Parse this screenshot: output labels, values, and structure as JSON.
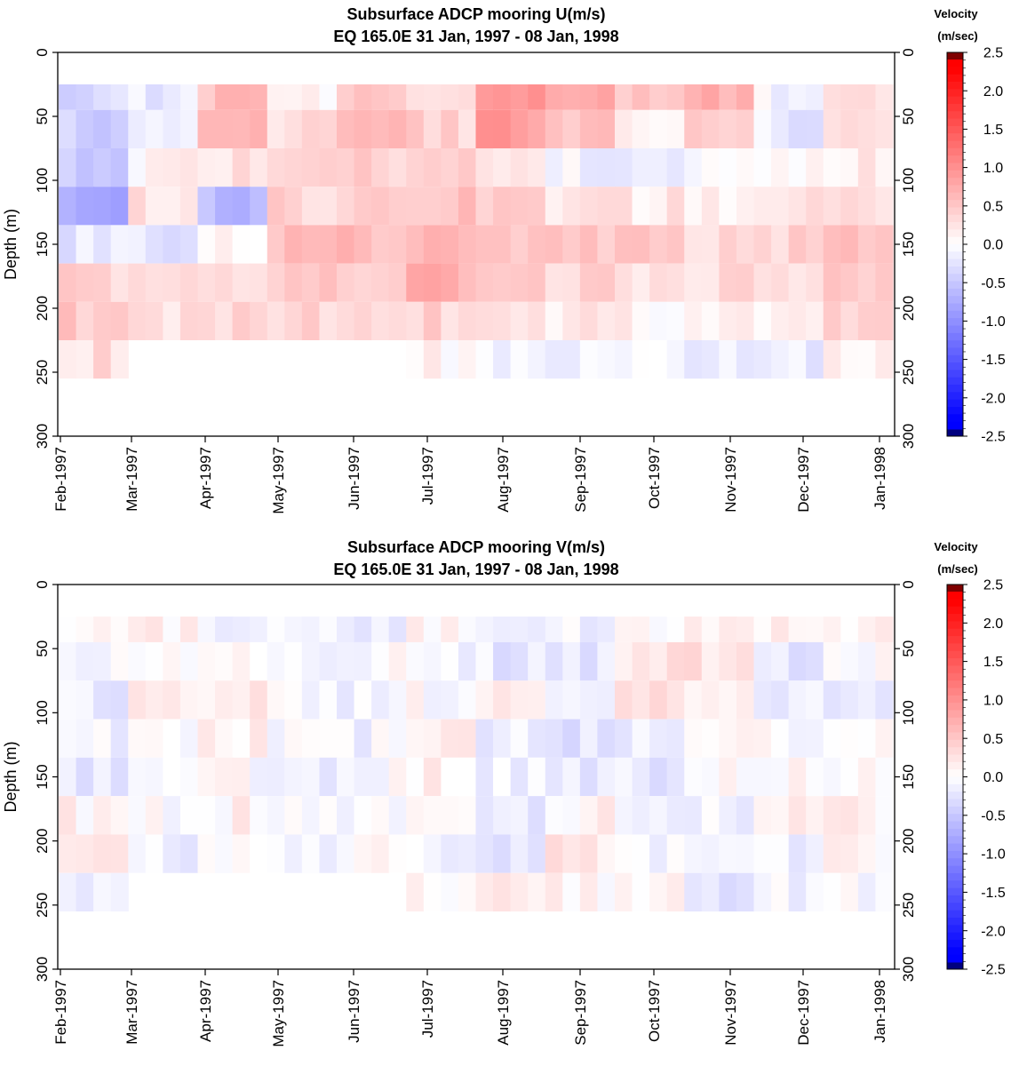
{
  "colorbar": {
    "title_line1": "Velocity",
    "title_line2": "(m/sec)",
    "range": [
      -2.5,
      2.5
    ],
    "ticks": [
      "2.5",
      "2.0",
      "1.5",
      "1.0",
      "0.5",
      "0.0",
      "-0.5",
      "-1.0",
      "-1.5",
      "-2.0",
      "-2.5"
    ],
    "colors": {
      "positive": "#ff0000",
      "zero": "#ffffff",
      "negative": "#0000ff",
      "max": "#7f0000",
      "min": "#00007f"
    }
  },
  "chart_data": [
    {
      "type": "heatmap",
      "title": "Subsurface ADCP mooring U(m/s)",
      "subtitle": "EQ 165.0E     31 Jan, 1997 - 08 Jan, 1998",
      "xlabel": "",
      "ylabel": "Depth (m)",
      "ylim": [
        0,
        300
      ],
      "y_ticks": [
        "0",
        "50",
        "100",
        "150",
        "200",
        "250",
        "300"
      ],
      "x_ticks": [
        "Feb-1997",
        "Mar-1997",
        "Apr-1997",
        "May-1997",
        "Jun-1997",
        "Jul-1997",
        "Aug-1997",
        "Sep-1997",
        "Oct-1997",
        "Nov-1997",
        "Dec-1997",
        "Jan-1998"
      ],
      "time_months": [
        "Feb-1997",
        "Mar-1997",
        "Apr-1997",
        "May-1997",
        "Jun-1997",
        "Jul-1997",
        "Aug-1997",
        "Sep-1997",
        "Oct-1997",
        "Nov-1997",
        "Dec-1997",
        "Jan-1998"
      ],
      "depths": [
        30,
        60,
        90,
        120,
        150,
        180,
        210,
        240
      ],
      "values": [
        [
          -0.3,
          -0.2,
          0.6,
          0.1,
          0.5,
          0.3,
          0.9,
          0.9,
          0.5,
          0.7,
          -0.1,
          0.2
        ],
        [
          -0.4,
          -0.1,
          0.7,
          0.3,
          0.6,
          0.4,
          0.9,
          0.6,
          0.1,
          0.5,
          -0.2,
          0.3
        ],
        [
          -0.5,
          0.1,
          0.3,
          0.5,
          0.4,
          0.5,
          0.3,
          -0.1,
          -0.2,
          -0.1,
          0.1,
          0.2
        ],
        [
          -0.8,
          0.3,
          -0.6,
          0.4,
          0.5,
          0.6,
          0.4,
          0.2,
          0.2,
          0.2,
          0.3,
          0.3
        ],
        [
          -0.2,
          -0.2,
          0.1,
          0.6,
          0.6,
          0.7,
          0.6,
          0.5,
          0.5,
          0.4,
          0.4,
          0.5
        ],
        [
          0.4,
          0.2,
          0.3,
          0.5,
          0.5,
          0.7,
          0.5,
          0.4,
          0.3,
          0.3,
          0.3,
          0.5
        ],
        [
          0.5,
          0.3,
          0.4,
          0.4,
          0.3,
          0.4,
          0.3,
          0.2,
          0.1,
          0.1,
          0.1,
          0.4
        ],
        [
          0.3,
          null,
          null,
          null,
          null,
          0.1,
          -0.1,
          -0.2,
          -0.1,
          -0.1,
          -0.2,
          0.1
        ]
      ]
    },
    {
      "type": "heatmap",
      "title": "Subsurface ADCP mooring V(m/s)",
      "subtitle": "EQ 165.0E     31 Jan, 1997 - 08 Jan, 1998",
      "xlabel": "",
      "ylabel": "Depth (m)",
      "ylim": [
        0,
        300
      ],
      "y_ticks": [
        "0",
        "50",
        "100",
        "150",
        "200",
        "250",
        "300"
      ],
      "x_ticks": [
        "Feb-1997",
        "Mar-1997",
        "Apr-1997",
        "May-1997",
        "Jun-1997",
        "Jul-1997",
        "Aug-1997",
        "Sep-1997",
        "Oct-1997",
        "Nov-1997",
        "Dec-1997",
        "Jan-1998"
      ],
      "time_months": [
        "Feb-1997",
        "Mar-1997",
        "Apr-1997",
        "May-1997",
        "Jun-1997",
        "Jul-1997",
        "Aug-1997",
        "Sep-1997",
        "Oct-1997",
        "Nov-1997",
        "Dec-1997",
        "Jan-1998"
      ],
      "depths": [
        30,
        60,
        90,
        120,
        150,
        180,
        210,
        240
      ],
      "values": [
        [
          0.1,
          0.1,
          -0.1,
          0.0,
          -0.1,
          0.1,
          -0.2,
          -0.1,
          0.1,
          0.2,
          0.2,
          0.1
        ],
        [
          -0.1,
          0.0,
          0.1,
          -0.1,
          0.0,
          -0.1,
          -0.2,
          -0.2,
          0.2,
          0.3,
          -0.3,
          0.0
        ],
        [
          -0.2,
          0.1,
          0.2,
          0.0,
          -0.1,
          0.0,
          0.1,
          -0.1,
          0.3,
          0.1,
          -0.2,
          -0.1
        ],
        [
          -0.1,
          0.0,
          0.1,
          -0.1,
          -0.1,
          0.1,
          -0.2,
          -0.3,
          -0.1,
          0.1,
          0.0,
          0.1
        ],
        [
          -0.2,
          -0.1,
          0.0,
          -0.2,
          0.0,
          0.1,
          -0.1,
          -0.2,
          -0.2,
          0.0,
          0.0,
          0.1
        ],
        [
          0.1,
          0.0,
          0.1,
          -0.1,
          0.0,
          0.1,
          -0.2,
          0.1,
          -0.2,
          -0.1,
          0.1,
          0.1
        ],
        [
          0.1,
          -0.1,
          0.0,
          -0.1,
          0.1,
          -0.1,
          -0.3,
          0.2,
          -0.1,
          -0.2,
          -0.1,
          0.1
        ],
        [
          -0.1,
          null,
          null,
          null,
          null,
          0.0,
          0.1,
          0.1,
          0.1,
          -0.2,
          -0.1,
          0.0
        ]
      ]
    }
  ]
}
